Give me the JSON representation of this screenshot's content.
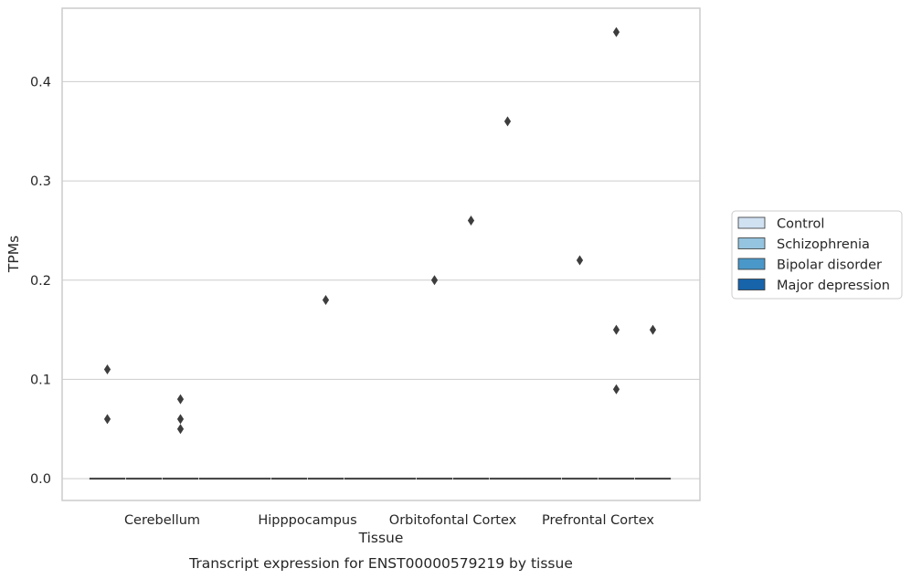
{
  "chart_data": {
    "type": "box",
    "caption": "Transcript expression for ENST00000579219 by tissue",
    "xlabel": "Tissue",
    "ylabel": "TPMs",
    "ylim": [
      -0.022,
      0.474
    ],
    "yticks": [
      0.0,
      0.1,
      0.2,
      0.3,
      0.4
    ],
    "ytick_labels": [
      "0.0",
      "0.1",
      "0.2",
      "0.3",
      "0.4"
    ],
    "grid": true,
    "legend_position": "right",
    "categories": [
      "Cerebellum",
      "Hipppocampus",
      "Orbitofontal Cortex",
      "Prefrontal Cortex"
    ],
    "series": [
      {
        "name": "Control",
        "color": "#d0e1f2"
      },
      {
        "name": "Schizophrenia",
        "color": "#94c4df"
      },
      {
        "name": "Bipolar disorder",
        "color": "#4a98c9"
      },
      {
        "name": "Major depression",
        "color": "#1764ab"
      }
    ],
    "medians": [
      [
        0.0,
        0.0,
        0.0,
        0.0
      ],
      [
        0.0,
        0.0,
        0.0,
        0.0
      ],
      [
        0.0,
        0.0,
        0.0,
        0.0
      ],
      [
        0.0,
        0.0,
        0.0,
        0.0
      ]
    ],
    "outliers": [
      {
        "category": "Cerebellum",
        "series": "Control",
        "values": [
          0.11,
          0.06
        ]
      },
      {
        "category": "Cerebellum",
        "series": "Bipolar disorder",
        "values": [
          0.08,
          0.06,
          0.05
        ]
      },
      {
        "category": "Hipppocampus",
        "series": "Bipolar disorder",
        "values": [
          0.18
        ]
      },
      {
        "category": "Orbitofontal Cortex",
        "series": "Schizophrenia",
        "values": [
          0.2
        ]
      },
      {
        "category": "Orbitofontal Cortex",
        "series": "Bipolar disorder",
        "values": [
          0.26
        ]
      },
      {
        "category": "Orbitofontal Cortex",
        "series": "Major depression",
        "values": [
          0.36
        ]
      },
      {
        "category": "Prefrontal Cortex",
        "series": "Schizophrenia",
        "values": [
          0.22
        ]
      },
      {
        "category": "Prefrontal Cortex",
        "series": "Bipolar disorder",
        "values": [
          0.45,
          0.15,
          0.09
        ]
      },
      {
        "category": "Prefrontal Cortex",
        "series": "Major depression",
        "values": [
          0.15
        ]
      }
    ],
    "style": {
      "grid_color": "#cccccc",
      "frame_color": "#cccccc",
      "marker_color": "#3d3d3d",
      "median_color": "#3d3d3d"
    }
  }
}
